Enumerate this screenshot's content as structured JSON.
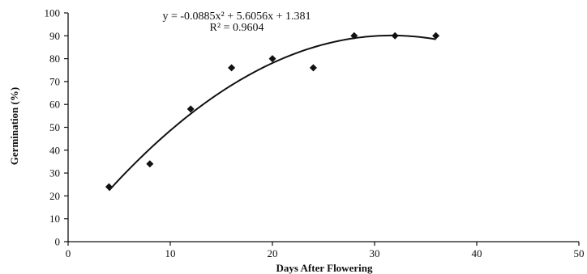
{
  "chart_data": {
    "type": "scatter",
    "xlabel": "Days After Flowering",
    "ylabel": "Germination (%)",
    "xlim": [
      0,
      50
    ],
    "ylim": [
      0,
      100
    ],
    "xticks": [
      "0",
      "10",
      "20",
      "30",
      "40",
      "50"
    ],
    "yticks": [
      "0",
      "10",
      "20",
      "30",
      "40",
      "50",
      "60",
      "70",
      "80",
      "90",
      "100"
    ],
    "points": [
      {
        "x": 4,
        "y": 24
      },
      {
        "x": 8,
        "y": 34
      },
      {
        "x": 12,
        "y": 58
      },
      {
        "x": 16,
        "y": 76
      },
      {
        "x": 20,
        "y": 80
      },
      {
        "x": 24,
        "y": 76
      },
      {
        "x": 28,
        "y": 90
      },
      {
        "x": 32,
        "y": 90
      },
      {
        "x": 36,
        "y": 90
      }
    ],
    "trendline": {
      "type": "polynomial",
      "order": 2,
      "a": -0.0885,
      "b": 5.6056,
      "c": 1.381,
      "x_range": [
        4,
        36
      ]
    },
    "equation_lines": [
      "y = -0.0885x² + 5.6056x + 1.381",
      "R² = 0.9604"
    ],
    "grid": false,
    "legend": "none",
    "colors": {
      "marker": "#111111",
      "line": "#111111",
      "axis": "#111111"
    }
  }
}
